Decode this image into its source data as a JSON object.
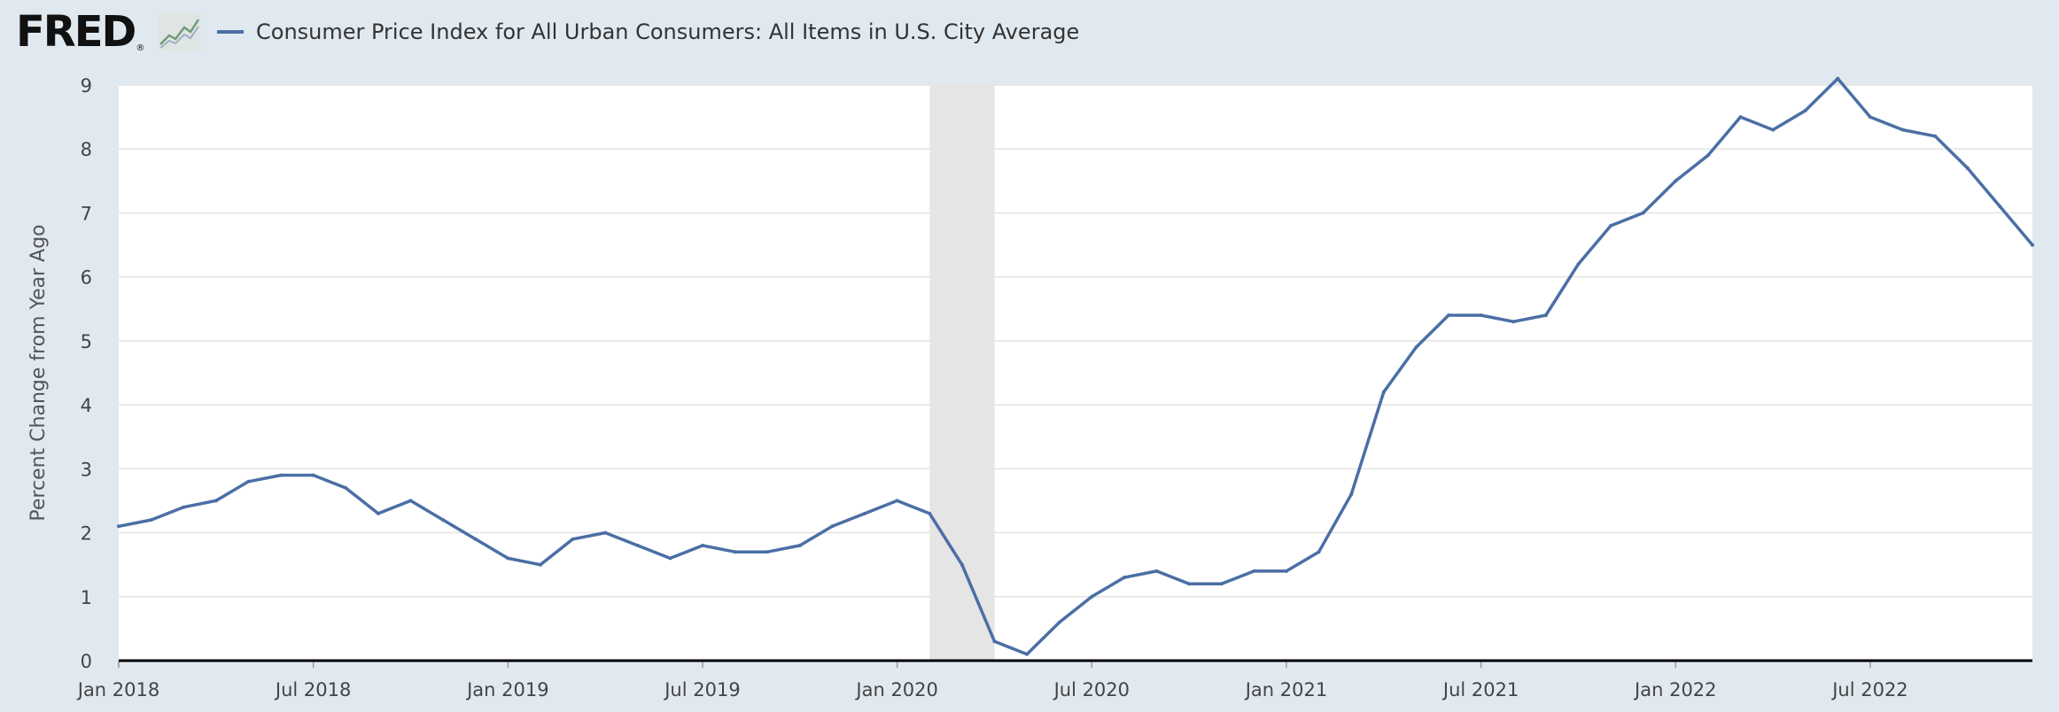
{
  "branding": {
    "logo_text": "FRED",
    "registered_mark": "®",
    "logo_icon": "line-chart-icon"
  },
  "chart_data": {
    "type": "line",
    "title": "",
    "xlabel": "",
    "ylabel": "Percent Change from Year Ago",
    "series": [
      {
        "name": "Consumer Price Index for All Urban Consumers: All Items in U.S. City Average",
        "color": "#4a6fa5",
        "x": [
          "2018-01",
          "2018-02",
          "2018-03",
          "2018-04",
          "2018-05",
          "2018-06",
          "2018-07",
          "2018-08",
          "2018-09",
          "2018-10",
          "2018-11",
          "2018-12",
          "2019-01",
          "2019-02",
          "2019-03",
          "2019-04",
          "2019-05",
          "2019-06",
          "2019-07",
          "2019-08",
          "2019-09",
          "2019-10",
          "2019-11",
          "2019-12",
          "2020-01",
          "2020-02",
          "2020-03",
          "2020-04",
          "2020-05",
          "2020-06",
          "2020-07",
          "2020-08",
          "2020-09",
          "2020-10",
          "2020-11",
          "2020-12",
          "2021-01",
          "2021-02",
          "2021-03",
          "2021-04",
          "2021-05",
          "2021-06",
          "2021-07",
          "2021-08",
          "2021-09",
          "2021-10",
          "2021-11",
          "2021-12",
          "2022-01",
          "2022-02",
          "2022-03",
          "2022-04",
          "2022-05",
          "2022-06",
          "2022-07",
          "2022-08",
          "2022-09",
          "2022-10",
          "2022-11",
          "2022-12"
        ],
        "values": [
          2.1,
          2.2,
          2.4,
          2.5,
          2.8,
          2.9,
          2.9,
          2.7,
          2.3,
          2.5,
          2.2,
          1.9,
          1.6,
          1.5,
          1.9,
          2.0,
          1.8,
          1.6,
          1.8,
          1.7,
          1.7,
          1.8,
          2.1,
          2.3,
          2.5,
          2.3,
          1.5,
          0.3,
          0.1,
          0.6,
          1.0,
          1.3,
          1.4,
          1.2,
          1.2,
          1.4,
          1.4,
          1.7,
          2.6,
          4.2,
          4.9,
          5.4,
          5.4,
          5.3,
          5.4,
          6.2,
          6.8,
          7.0,
          7.5,
          7.9,
          8.5,
          8.3,
          8.6,
          9.1,
          8.5,
          8.3,
          8.2,
          7.7,
          7.1,
          6.5
        ]
      }
    ],
    "recession": {
      "start": "2020-02",
      "end": "2020-04"
    },
    "x_ticks": [
      {
        "date": "2018-01",
        "label": "Jan 2018"
      },
      {
        "date": "2018-07",
        "label": "Jul 2018"
      },
      {
        "date": "2019-01",
        "label": "Jan 2019"
      },
      {
        "date": "2019-07",
        "label": "Jul 2019"
      },
      {
        "date": "2020-01",
        "label": "Jan 2020"
      },
      {
        "date": "2020-07",
        "label": "Jul 2020"
      },
      {
        "date": "2021-01",
        "label": "Jan 2021"
      },
      {
        "date": "2021-07",
        "label": "Jul 2021"
      },
      {
        "date": "2022-01",
        "label": "Jan 2022"
      },
      {
        "date": "2022-07",
        "label": "Jul 2022"
      }
    ],
    "y_ticks": [
      0,
      1,
      2,
      3,
      4,
      5,
      6,
      7,
      8,
      9
    ],
    "ylim": [
      0,
      9
    ],
    "grid": true,
    "legend_position": "top-left"
  }
}
